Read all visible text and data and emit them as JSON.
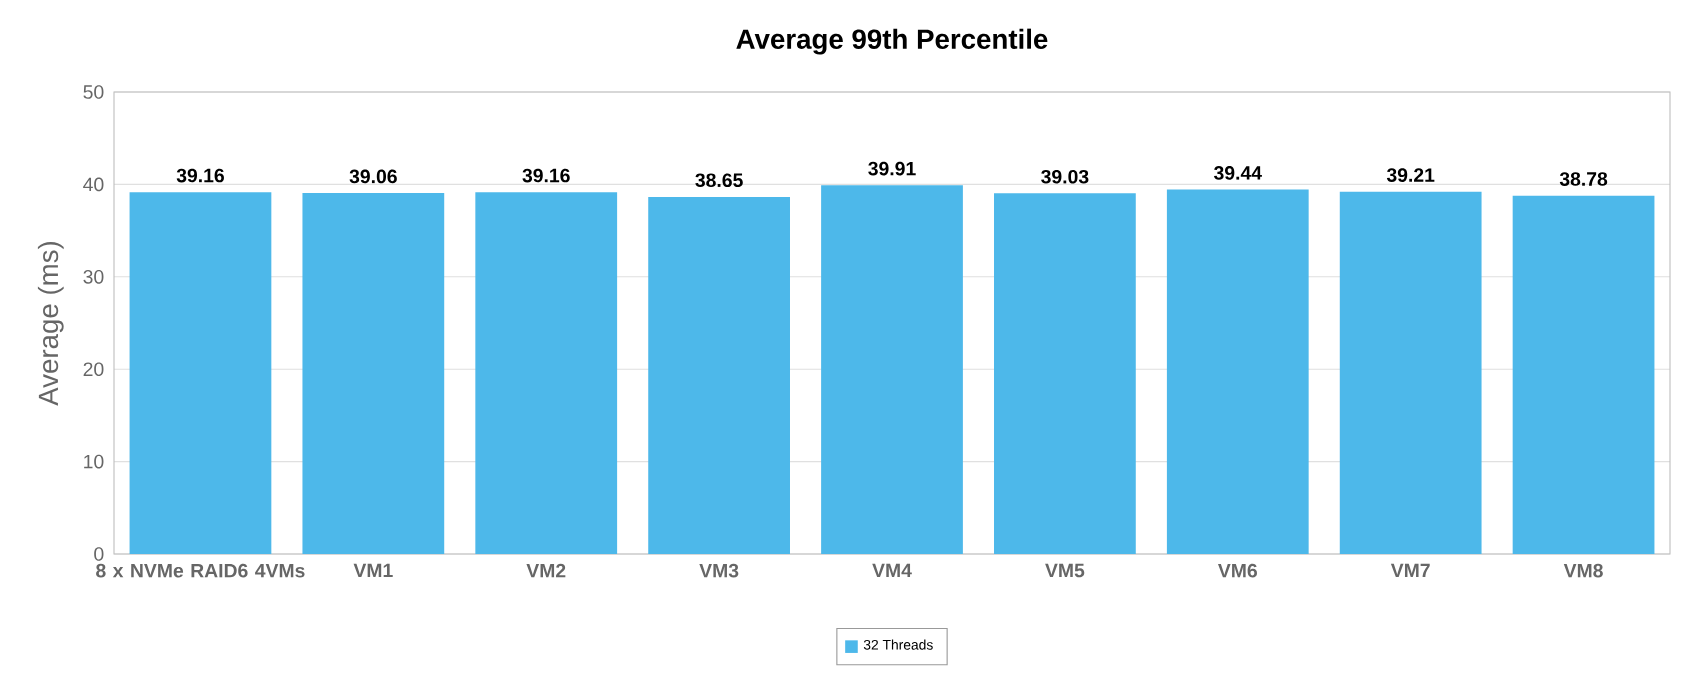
{
  "chart_data": {
    "type": "bar",
    "title": "Average 99th Percentile",
    "ylabel": "Average (ms)",
    "categories": [
      "8 x NVMe RAID6 4VMs",
      "VM1",
      "VM2",
      "VM3",
      "VM4",
      "VM5",
      "VM6",
      "VM7",
      "VM8"
    ],
    "series": [
      {
        "name": "32 Threads",
        "color": "#4db8ea",
        "values": [
          39.16,
          39.06,
          39.16,
          38.65,
          39.91,
          39.03,
          39.44,
          39.21,
          38.78
        ]
      }
    ],
    "ylim": [
      0,
      50
    ],
    "yticks": [
      0,
      10,
      20,
      30,
      40,
      50
    ],
    "grid": "y",
    "legend": "bottom",
    "data_labels": true
  }
}
